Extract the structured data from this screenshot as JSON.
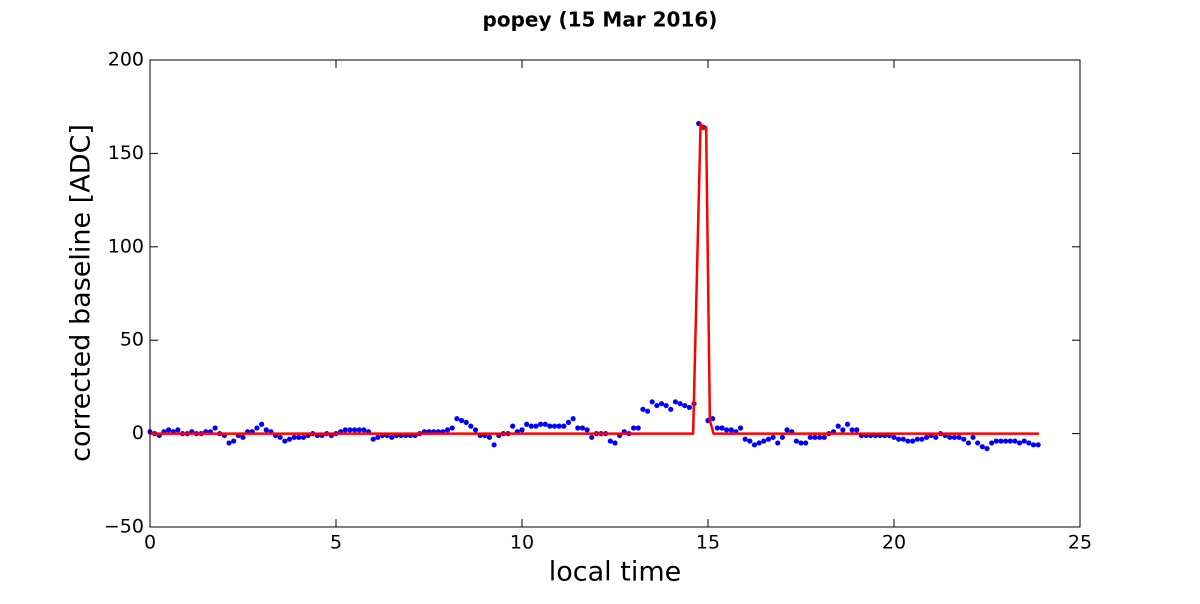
{
  "chart_data": {
    "type": "scatter",
    "title": "popey (15 Mar 2016)",
    "x_label": "local time",
    "y_label": "corrected baseline [ADC]",
    "xlim": [
      0,
      25
    ],
    "ylim": [
      -50,
      200
    ],
    "xticks": [
      0,
      5,
      10,
      15,
      20,
      25
    ],
    "yticks": [
      {
        "value": -50,
        "label": "−50"
      },
      0,
      50,
      100,
      150,
      200
    ],
    "series": [
      {
        "type": "scatter",
        "color": "#0000ff",
        "x": [
          0,
          0.125,
          0.25,
          0.375,
          0.5,
          0.625,
          0.75,
          0.875,
          1,
          1.125,
          1.25,
          1.375,
          1.5,
          1.625,
          1.75,
          1.875,
          2,
          2.125,
          2.25,
          2.375,
          2.5,
          2.625,
          2.75,
          2.875,
          3,
          3.125,
          3.25,
          3.375,
          3.5,
          3.625,
          3.75,
          3.875,
          4,
          4.125,
          4.25,
          4.375,
          4.5,
          4.625,
          4.75,
          4.875,
          5,
          5.125,
          5.25,
          5.375,
          5.5,
          5.625,
          5.75,
          5.875,
          6,
          6.125,
          6.25,
          6.375,
          6.5,
          6.625,
          6.75,
          6.875,
          7,
          7.125,
          7.25,
          7.375,
          7.5,
          7.625,
          7.75,
          7.875,
          8,
          8.125,
          8.25,
          8.375,
          8.5,
          8.625,
          8.75,
          8.875,
          9,
          9.125,
          9.25,
          9.375,
          9.5,
          9.625,
          9.75,
          9.875,
          10,
          10.125,
          10.25,
          10.375,
          10.5,
          10.625,
          10.75,
          10.875,
          11,
          11.125,
          11.25,
          11.375,
          11.5,
          11.625,
          11.75,
          11.875,
          12,
          12.125,
          12.25,
          12.375,
          12.5,
          12.625,
          12.75,
          12.875,
          13,
          13.125,
          13.25,
          13.375,
          13.5,
          13.625,
          13.75,
          13.875,
          14,
          14.125,
          14.25,
          14.375,
          14.5,
          14.625,
          14.75,
          14.875,
          15,
          15.125,
          15.25,
          15.375,
          15.5,
          15.625,
          15.75,
          15.875,
          16,
          16.125,
          16.25,
          16.375,
          16.5,
          16.625,
          16.75,
          16.875,
          17,
          17.125,
          17.25,
          17.375,
          17.5,
          17.625,
          17.75,
          17.875,
          18,
          18.125,
          18.25,
          18.375,
          18.5,
          18.625,
          18.75,
          18.875,
          19,
          19.125,
          19.25,
          19.375,
          19.5,
          19.625,
          19.75,
          19.875,
          20,
          20.125,
          20.25,
          20.375,
          20.5,
          20.625,
          20.75,
          20.875,
          21,
          21.125,
          21.25,
          21.375,
          21.5,
          21.625,
          21.75,
          21.875,
          22,
          22.125,
          22.25,
          22.375,
          22.5,
          22.625,
          22.75,
          22.875,
          23,
          23.125,
          23.25,
          23.375,
          23.5,
          23.625,
          23.75,
          23.875
        ],
        "values": [
          1,
          0,
          -1,
          1,
          2,
          1,
          2,
          0,
          0,
          1,
          0,
          0,
          1,
          1,
          3,
          0,
          -1,
          -5,
          -4,
          -1,
          -2,
          1,
          1,
          3,
          5,
          2,
          1,
          -1,
          -2,
          -4,
          -3,
          -2,
          -2,
          -2,
          -1,
          0,
          -1,
          -1,
          0,
          -1,
          0,
          1,
          2,
          2,
          2,
          2,
          2,
          1,
          -3,
          -2,
          -1,
          -1,
          -2,
          -1,
          -1,
          -1,
          -1,
          -1,
          0,
          1,
          1,
          1,
          1,
          1,
          2,
          3,
          8,
          7,
          6,
          4,
          2,
          -1,
          -1,
          -2,
          -6,
          -1,
          0,
          0,
          4,
          1,
          2,
          5,
          4,
          4,
          5,
          5,
          4,
          4,
          4,
          4,
          6,
          8,
          3,
          3,
          2,
          -2,
          0,
          0,
          0,
          -4,
          -5,
          -1,
          1,
          0,
          3,
          3,
          13,
          12,
          17,
          15,
          16,
          15,
          13,
          17,
          16,
          15,
          14,
          16,
          166,
          164,
          7,
          8,
          3,
          3,
          2,
          2,
          1,
          3,
          -3,
          -4,
          -6,
          -5,
          -4,
          -3,
          -2,
          -5,
          -2,
          2,
          1,
          -4,
          -5,
          -5,
          -2,
          -2,
          -2,
          -2,
          0,
          1,
          4,
          2,
          5,
          2,
          2,
          -1,
          -1,
          -1,
          -1,
          -1,
          -1,
          -1,
          -2,
          -3,
          -3,
          -4,
          -4,
          -3,
          -3,
          -2,
          -1,
          -2,
          0,
          -1,
          -2,
          -2,
          -2,
          -3,
          -5,
          -2,
          -5,
          -7,
          -8,
          -5,
          -4,
          -4,
          -4,
          -4,
          -4,
          -5,
          -4,
          -5,
          -6,
          -6
        ]
      },
      {
        "type": "line",
        "color": "#ff0000",
        "x": [
          0,
          14.6,
          14.8,
          14.88,
          14.95,
          15.05,
          15.15,
          23.9
        ],
        "values": [
          0,
          0,
          166,
          163,
          164,
          7,
          0,
          0
        ]
      }
    ]
  }
}
